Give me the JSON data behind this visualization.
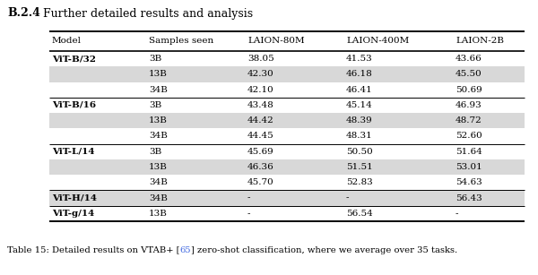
{
  "title_bold": "B.2.4",
  "title_rest": "  Further detailed results and analysis",
  "caption_pre": "Table 15: Detailed results on VTAB+ [",
  "caption_link": "65",
  "caption_post": "] zero-shot classification, where we average over 35 tasks.",
  "headers": [
    "Model",
    "Samples seen",
    "LAION-80M",
    "LAION-400M",
    "LAION-2B"
  ],
  "rows": [
    [
      "ViT-B/32",
      "3B",
      "38.05",
      "41.53",
      "43.66"
    ],
    [
      "",
      "13B",
      "42.30",
      "46.18",
      "45.50"
    ],
    [
      "",
      "34B",
      "42.10",
      "46.41",
      "50.69"
    ],
    [
      "ViT-B/16",
      "3B",
      "43.48",
      "45.14",
      "46.93"
    ],
    [
      "",
      "13B",
      "44.42",
      "48.39",
      "48.72"
    ],
    [
      "",
      "34B",
      "44.45",
      "48.31",
      "52.60"
    ],
    [
      "ViT-L/14",
      "3B",
      "45.69",
      "50.50",
      "51.64"
    ],
    [
      "",
      "13B",
      "46.36",
      "51.51",
      "53.01"
    ],
    [
      "",
      "34B",
      "45.70",
      "52.83",
      "54.63"
    ],
    [
      "ViT-H/14",
      "34B",
      "-",
      "-",
      "56.43"
    ],
    [
      "ViT-g/14",
      "13B",
      "-",
      "56.54",
      "-"
    ]
  ],
  "bold_model_rows": [
    0,
    3,
    6,
    9,
    10
  ],
  "shaded_rows": [
    1,
    4,
    7,
    9
  ],
  "group_divider_before_rows": [
    3,
    6,
    9,
    10
  ],
  "shade_color": "#d8d8d8",
  "link_color": "#4169e1"
}
